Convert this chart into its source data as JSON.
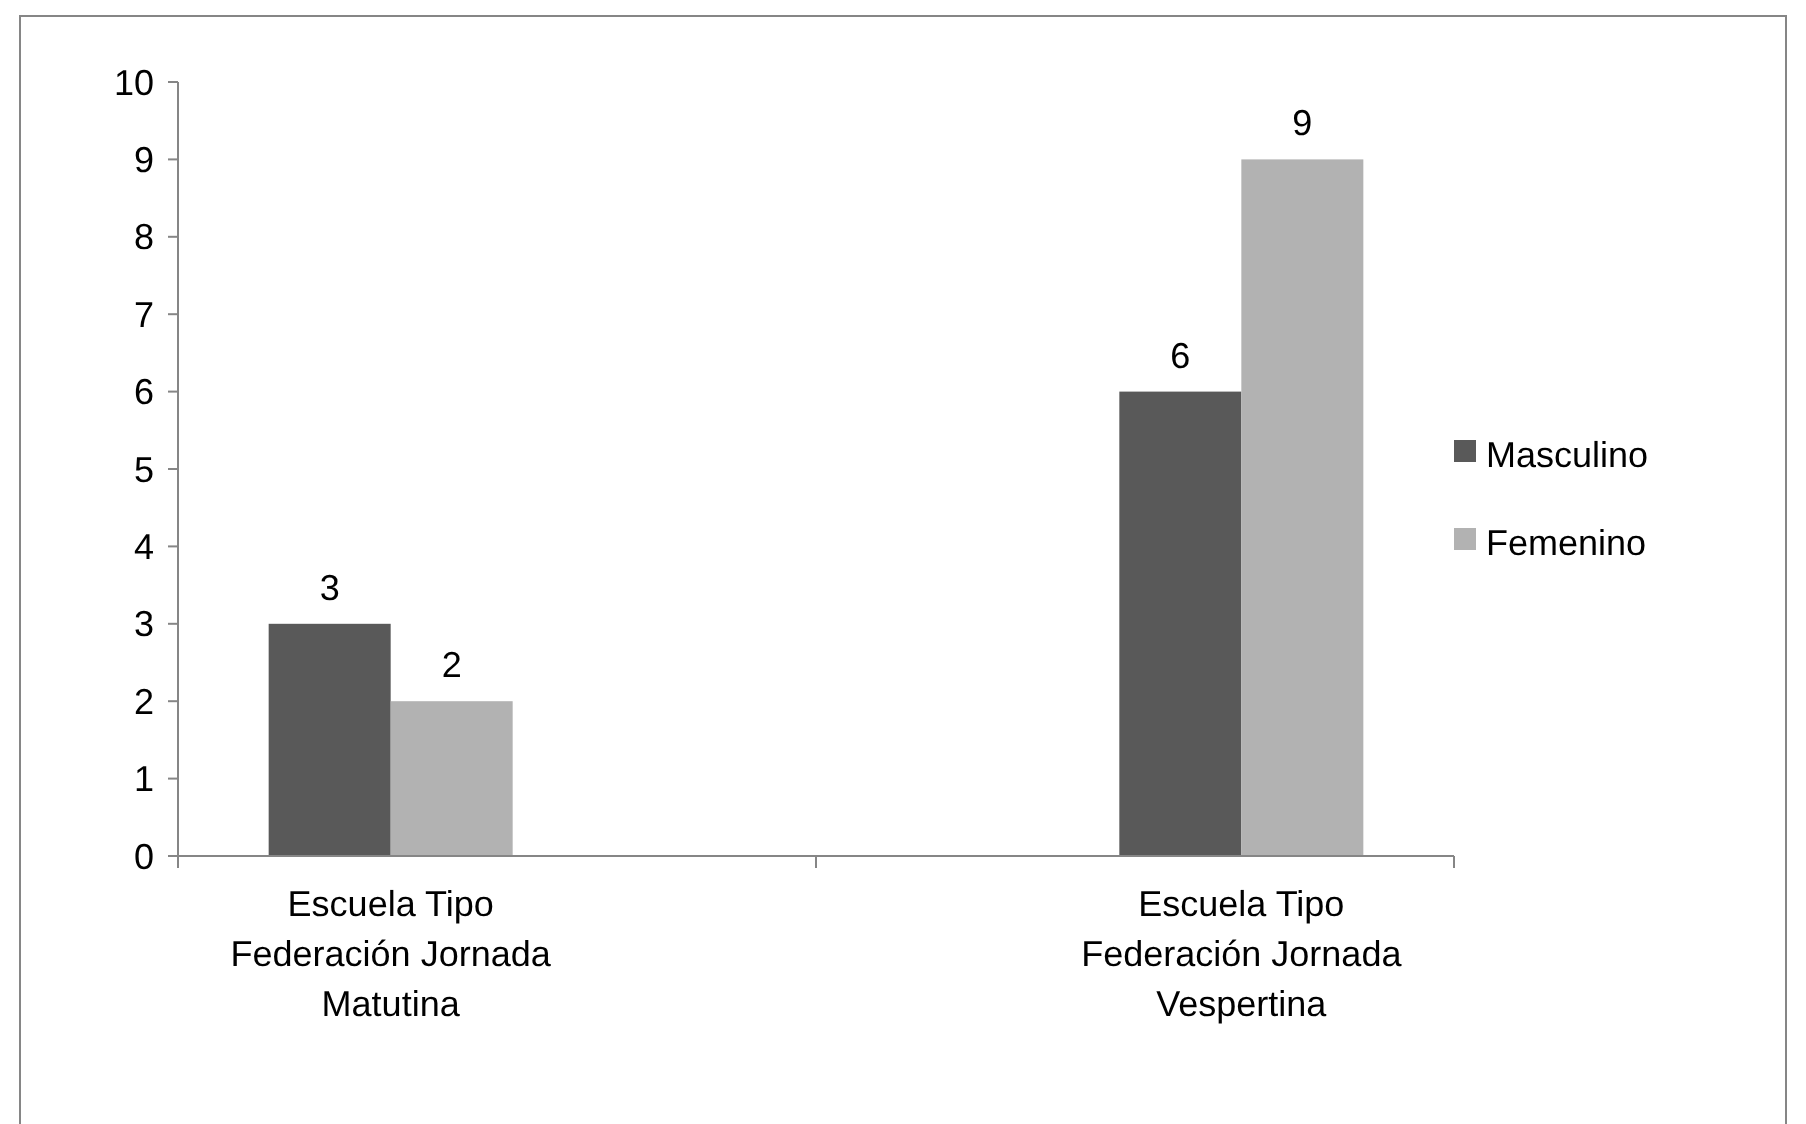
{
  "chart_data": {
    "type": "bar",
    "categories": [
      "Escuela Tipo Federación Jornada Matutina",
      "Escuela Tipo Federación Jornada Vespertina"
    ],
    "series": [
      {
        "name": "Masculino",
        "color": "#595959",
        "values": [
          3,
          6
        ]
      },
      {
        "name": "Femenino",
        "color": "#b2b2b2",
        "values": [
          2,
          9
        ]
      }
    ],
    "ylim": [
      0,
      10
    ],
    "yticks": [
      0,
      1,
      2,
      3,
      4,
      5,
      6,
      7,
      8,
      9,
      10
    ],
    "data_labels": true,
    "legend": "right",
    "grid": false
  }
}
